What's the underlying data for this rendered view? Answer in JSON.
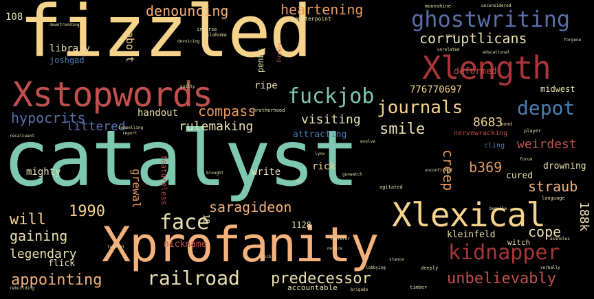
{
  "colors": {
    "background": "#000000",
    "teal": "#7ec8b1",
    "yellow": "#f6d38a",
    "peach": "#f3b17b",
    "orange": "#e89a5f",
    "red": "#c0504d",
    "crimson": "#a8353b",
    "slate": "#5b6ea8",
    "blue": "#4a7fb5",
    "cream": "#e9e0b0",
    "gray": "#9aa5a0"
  },
  "words": [
    "catalyst",
    "fizzled",
    "Xprofanity",
    "Xstopwords",
    "Xlength",
    "Xlexical",
    "ghostwriting",
    "fuckjob",
    "journals",
    "depot",
    "kidnapper",
    "railroad",
    "appointing",
    "predecessor",
    "unbelievably",
    "denouncing",
    "heartening",
    "corruptlicans",
    "compass",
    "hypocrits",
    "littered",
    "rulemaking",
    "visiting",
    "smile",
    "8683",
    "776770697",
    "weirdest",
    "b369",
    "straub",
    "creep",
    "grewal",
    "saragideon",
    "face",
    "1990",
    "will",
    "gaining",
    "legendary",
    "cope",
    "188k",
    "deformed",
    "about",
    "library",
    "joshgad",
    "108",
    "handout",
    "ripe",
    "squad",
    "mighty",
    "write",
    "rick",
    "cured",
    "drowning",
    "attracting",
    "kleinfeld",
    "nickname",
    "1128",
    "flick",
    "accountable",
    "midwest",
    "featureless",
    "18",
    "nervewracking",
    "witch",
    "cling",
    "brotherhood",
    "moonshine",
    "fcking",
    "counterpoint",
    "inverse",
    "oklahoma",
    "agitated",
    "language",
    "deeply",
    "timber",
    "player",
    "bond",
    "funeral",
    "assholes",
    "therefor",
    "sick",
    "downtrending",
    "devoicing",
    "compelling",
    "guilty",
    "evolve",
    "rebuilding",
    "unconsidered",
    "educational",
    "forgone",
    "unrelated",
    "verbally",
    "lobbying",
    "recalcuant",
    "report",
    "lynx",
    "brigade",
    "brought",
    "forum",
    "beguile",
    "notice",
    "stance",
    "gunwatch",
    "uni",
    "unconfirmed",
    "rsvp"
  ]
}
